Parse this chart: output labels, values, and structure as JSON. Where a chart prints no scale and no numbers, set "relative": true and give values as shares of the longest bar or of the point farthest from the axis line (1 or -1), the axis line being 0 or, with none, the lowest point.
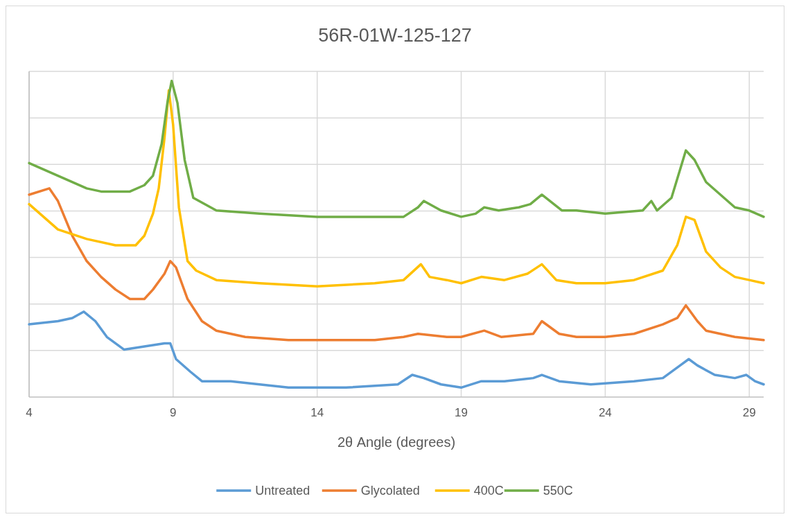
{
  "chart_data": {
    "type": "line",
    "title": "56R-01W-125-127",
    "xlabel": "2θ Angle (degrees)",
    "relative": true,
    "xlim": [
      4,
      29.5
    ],
    "xticks": [
      4,
      9,
      14,
      19,
      24,
      29
    ],
    "grid": true,
    "legend": "bottom",
    "marker": "none",
    "line_style": "solid",
    "series": [
      {
        "name": "Untreated",
        "color": "#5b9bd5",
        "x": [
          4,
          5,
          5.5,
          5.9,
          6.3,
          6.7,
          7.3,
          8,
          8.7,
          8.9,
          9.1,
          9.6,
          10,
          11,
          13,
          15,
          16.8,
          17.3,
          17.7,
          18.3,
          19,
          19.7,
          20.5,
          21.5,
          21.8,
          22.4,
          23.5,
          25,
          26,
          26.6,
          26.9,
          27.2,
          27.8,
          28.5,
          28.9,
          29.2,
          29.5
        ],
        "values": [
          0.23,
          0.24,
          0.25,
          0.27,
          0.24,
          0.19,
          0.15,
          0.16,
          0.17,
          0.17,
          0.12,
          0.08,
          0.05,
          0.05,
          0.03,
          0.03,
          0.04,
          0.07,
          0.06,
          0.04,
          0.03,
          0.05,
          0.05,
          0.06,
          0.07,
          0.05,
          0.04,
          0.05,
          0.06,
          0.1,
          0.12,
          0.1,
          0.07,
          0.06,
          0.07,
          0.05,
          0.04
        ]
      },
      {
        "name": "Glycolated",
        "color": "#ed7d31",
        "x": [
          4,
          4.7,
          5,
          5.5,
          6,
          6.5,
          7,
          7.5,
          8,
          8.3,
          8.7,
          8.9,
          9.1,
          9.5,
          10,
          10.5,
          11.5,
          13,
          14,
          16,
          17,
          17.5,
          18.5,
          19,
          19.8,
          20.4,
          21.5,
          21.8,
          22.4,
          23,
          24,
          25,
          26,
          26.5,
          26.8,
          27.2,
          27.5,
          28,
          28.5,
          29.5
        ],
        "values": [
          0.64,
          0.66,
          0.62,
          0.51,
          0.43,
          0.38,
          0.34,
          0.31,
          0.31,
          0.34,
          0.39,
          0.43,
          0.41,
          0.31,
          0.24,
          0.21,
          0.19,
          0.18,
          0.18,
          0.18,
          0.19,
          0.2,
          0.19,
          0.19,
          0.21,
          0.19,
          0.2,
          0.24,
          0.2,
          0.19,
          0.19,
          0.2,
          0.23,
          0.25,
          0.29,
          0.24,
          0.21,
          0.2,
          0.19,
          0.18
        ]
      },
      {
        "name": "400C",
        "color": "#ffc000",
        "x": [
          4,
          4.5,
          5,
          6,
          7,
          7.7,
          8,
          8.3,
          8.5,
          8.7,
          8.85,
          9,
          9.2,
          9.5,
          9.8,
          10.5,
          12,
          14,
          16,
          17,
          17.6,
          17.9,
          18.5,
          19,
          19.7,
          20.5,
          21.3,
          21.8,
          22.3,
          23,
          24,
          25,
          26,
          26.5,
          26.8,
          27.1,
          27.5,
          28,
          28.5,
          29,
          29.5
        ],
        "values": [
          0.61,
          0.57,
          0.53,
          0.5,
          0.48,
          0.48,
          0.51,
          0.58,
          0.66,
          0.82,
          0.97,
          0.86,
          0.6,
          0.43,
          0.4,
          0.37,
          0.36,
          0.35,
          0.36,
          0.37,
          0.42,
          0.38,
          0.37,
          0.36,
          0.38,
          0.37,
          0.39,
          0.42,
          0.37,
          0.36,
          0.36,
          0.37,
          0.4,
          0.48,
          0.57,
          0.56,
          0.46,
          0.41,
          0.38,
          0.37,
          0.36
        ]
      },
      {
        "name": "550C",
        "color": "#70ad47",
        "x": [
          4,
          5,
          6,
          6.5,
          7.5,
          8,
          8.3,
          8.6,
          8.8,
          8.95,
          9.15,
          9.4,
          9.7,
          10.5,
          12,
          14,
          16,
          17,
          17.5,
          17.7,
          18.3,
          19,
          19.5,
          19.8,
          20.3,
          21,
          21.4,
          21.8,
          22.5,
          23,
          24,
          25.3,
          25.6,
          25.8,
          26.3,
          26.6,
          26.8,
          27.1,
          27.5,
          28,
          28.5,
          29,
          29.5
        ],
        "values": [
          0.74,
          0.7,
          0.66,
          0.65,
          0.65,
          0.67,
          0.7,
          0.8,
          0.93,
          1,
          0.93,
          0.75,
          0.63,
          0.59,
          0.58,
          0.57,
          0.57,
          0.57,
          0.6,
          0.62,
          0.59,
          0.57,
          0.58,
          0.6,
          0.59,
          0.6,
          0.61,
          0.64,
          0.59,
          0.59,
          0.58,
          0.59,
          0.62,
          0.59,
          0.63,
          0.72,
          0.78,
          0.75,
          0.68,
          0.64,
          0.6,
          0.59,
          0.57
        ]
      }
    ]
  }
}
